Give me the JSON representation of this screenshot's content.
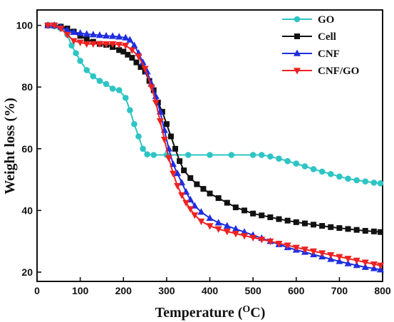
{
  "chart_data": {
    "type": "line",
    "xlabel": "Temperature (",
    "xlabel_sup": "O",
    "xlabel_end": "C)",
    "ylabel": "Weight loss (%)",
    "xlim": [
      0,
      800
    ],
    "ylim": [
      17,
      105
    ],
    "xticks": [
      0,
      100,
      200,
      300,
      400,
      500,
      600,
      700,
      800
    ],
    "yticks": [
      20,
      40,
      60,
      80,
      100
    ],
    "grid": false,
    "legend_position": "top-right",
    "series": [
      {
        "name": "GO",
        "color": "#2ec4c4",
        "marker": "circle",
        "points": [
          [
            25,
            100
          ],
          [
            40,
            99.7
          ],
          [
            55,
            99
          ],
          [
            70,
            97
          ],
          [
            80,
            93.5
          ],
          [
            90,
            91
          ],
          [
            100,
            88.5
          ],
          [
            115,
            85.5
          ],
          [
            130,
            83.5
          ],
          [
            145,
            82
          ],
          [
            160,
            81
          ],
          [
            175,
            79.5
          ],
          [
            190,
            79
          ],
          [
            205,
            76.5
          ],
          [
            215,
            72.5
          ],
          [
            225,
            68
          ],
          [
            235,
            64
          ],
          [
            245,
            60
          ],
          [
            255,
            58.2
          ],
          [
            270,
            58
          ],
          [
            300,
            58
          ],
          [
            350,
            58
          ],
          [
            400,
            58
          ],
          [
            450,
            58
          ],
          [
            500,
            58
          ],
          [
            520,
            58
          ],
          [
            540,
            57.5
          ],
          [
            560,
            56.8
          ],
          [
            580,
            56
          ],
          [
            600,
            55.2
          ],
          [
            620,
            54.3
          ],
          [
            640,
            53.4
          ],
          [
            660,
            52.6
          ],
          [
            680,
            51.8
          ],
          [
            700,
            51
          ],
          [
            720,
            50.3
          ],
          [
            740,
            49.8
          ],
          [
            760,
            49.4
          ],
          [
            780,
            49
          ],
          [
            795,
            48.8
          ]
        ]
      },
      {
        "name": "Cell",
        "color": "#111111",
        "marker": "square",
        "points": [
          [
            25,
            100
          ],
          [
            40,
            100
          ],
          [
            55,
            99.6
          ],
          [
            70,
            99
          ],
          [
            85,
            98
          ],
          [
            100,
            96.6
          ],
          [
            115,
            95.5
          ],
          [
            130,
            94.7
          ],
          [
            145,
            94
          ],
          [
            160,
            93.7
          ],
          [
            175,
            93
          ],
          [
            190,
            92
          ],
          [
            200,
            91.5
          ],
          [
            210,
            90.5
          ],
          [
            220,
            89.5
          ],
          [
            230,
            88
          ],
          [
            240,
            86.5
          ],
          [
            250,
            85
          ],
          [
            260,
            82
          ],
          [
            270,
            79
          ],
          [
            280,
            75
          ],
          [
            290,
            72
          ],
          [
            300,
            68
          ],
          [
            310,
            64
          ],
          [
            320,
            60
          ],
          [
            330,
            56
          ],
          [
            340,
            53
          ],
          [
            355,
            50.5
          ],
          [
            370,
            48.5
          ],
          [
            385,
            47
          ],
          [
            400,
            45.5
          ],
          [
            420,
            44
          ],
          [
            440,
            42.5
          ],
          [
            460,
            41
          ],
          [
            480,
            40
          ],
          [
            500,
            39
          ],
          [
            520,
            38.4
          ],
          [
            540,
            37.8
          ],
          [
            560,
            37.2
          ],
          [
            580,
            36.7
          ],
          [
            600,
            36.2
          ],
          [
            620,
            35.8
          ],
          [
            640,
            35.4
          ],
          [
            660,
            35
          ],
          [
            680,
            34.6
          ],
          [
            700,
            34.3
          ],
          [
            720,
            34
          ],
          [
            740,
            33.7
          ],
          [
            760,
            33.4
          ],
          [
            780,
            33.2
          ],
          [
            795,
            33
          ]
        ]
      },
      {
        "name": "CNF",
        "color": "#1f2ee0",
        "marker": "triangle-up",
        "points": [
          [
            25,
            100
          ],
          [
            40,
            100
          ],
          [
            55,
            99.5
          ],
          [
            70,
            98.5
          ],
          [
            85,
            97.8
          ],
          [
            100,
            97.5
          ],
          [
            115,
            97.2
          ],
          [
            130,
            97
          ],
          [
            145,
            96.8
          ],
          [
            160,
            96.6
          ],
          [
            175,
            96.5
          ],
          [
            190,
            96.3
          ],
          [
            205,
            96
          ],
          [
            215,
            95.3
          ],
          [
            225,
            93.5
          ],
          [
            235,
            91
          ],
          [
            245,
            88
          ],
          [
            255,
            85
          ],
          [
            265,
            81
          ],
          [
            275,
            77
          ],
          [
            285,
            72
          ],
          [
            295,
            66
          ],
          [
            305,
            60
          ],
          [
            315,
            55
          ],
          [
            325,
            52
          ],
          [
            335,
            49
          ],
          [
            345,
            46
          ],
          [
            355,
            43.5
          ],
          [
            365,
            41.5
          ],
          [
            380,
            39.5
          ],
          [
            400,
            37.5
          ],
          [
            420,
            36
          ],
          [
            440,
            35
          ],
          [
            460,
            34
          ],
          [
            480,
            33
          ],
          [
            500,
            32
          ],
          [
            520,
            31
          ],
          [
            540,
            30
          ],
          [
            560,
            29
          ],
          [
            580,
            28
          ],
          [
            600,
            27.2
          ],
          [
            620,
            26.5
          ],
          [
            640,
            25.7
          ],
          [
            660,
            25
          ],
          [
            680,
            24.2
          ],
          [
            700,
            23.5
          ],
          [
            720,
            22.8
          ],
          [
            740,
            22.2
          ],
          [
            760,
            21.6
          ],
          [
            780,
            21.2
          ],
          [
            795,
            20.8
          ]
        ]
      },
      {
        "name": "CNF/GO",
        "color": "#ee2222",
        "marker": "triangle-down",
        "points": [
          [
            25,
            100
          ],
          [
            40,
            100
          ],
          [
            55,
            99
          ],
          [
            70,
            97
          ],
          [
            85,
            95
          ],
          [
            100,
            94.5
          ],
          [
            115,
            94
          ],
          [
            130,
            94
          ],
          [
            145,
            94
          ],
          [
            160,
            94
          ],
          [
            175,
            94
          ],
          [
            190,
            93.8
          ],
          [
            205,
            93.5
          ],
          [
            220,
            92
          ],
          [
            235,
            90
          ],
          [
            250,
            86
          ],
          [
            265,
            80
          ],
          [
            275,
            75
          ],
          [
            285,
            69
          ],
          [
            295,
            63
          ],
          [
            305,
            57
          ],
          [
            315,
            52
          ],
          [
            325,
            48
          ],
          [
            335,
            45
          ],
          [
            345,
            42.5
          ],
          [
            355,
            40.5
          ],
          [
            365,
            38.5
          ],
          [
            380,
            36.5
          ],
          [
            400,
            35
          ],
          [
            420,
            34
          ],
          [
            440,
            33.2
          ],
          [
            460,
            32.5
          ],
          [
            480,
            31.8
          ],
          [
            500,
            31.2
          ],
          [
            520,
            30.6
          ],
          [
            540,
            30
          ],
          [
            560,
            29.3
          ],
          [
            580,
            28.7
          ],
          [
            600,
            28
          ],
          [
            620,
            27.4
          ],
          [
            640,
            26.8
          ],
          [
            660,
            26.2
          ],
          [
            680,
            25.6
          ],
          [
            700,
            25
          ],
          [
            720,
            24.4
          ],
          [
            740,
            23.8
          ],
          [
            760,
            23.2
          ],
          [
            780,
            22.6
          ],
          [
            795,
            22.2
          ]
        ]
      }
    ]
  }
}
